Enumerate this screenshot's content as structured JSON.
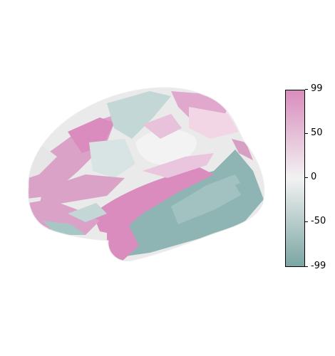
{
  "colorbar": {
    "ticks": [
      "99",
      "50",
      "0",
      "-50",
      "-99"
    ],
    "min": -99,
    "max": 99,
    "colors": {
      "high": "#d98cbd",
      "mid": "#f2f2f2",
      "low": "#7aa6a3"
    }
  },
  "surface": {
    "palette": [
      "#d98cbd",
      "#e4b3d3",
      "#eaeaea",
      "#c9dbd9",
      "#a7c7c5",
      "#8eb5b3"
    ]
  }
}
